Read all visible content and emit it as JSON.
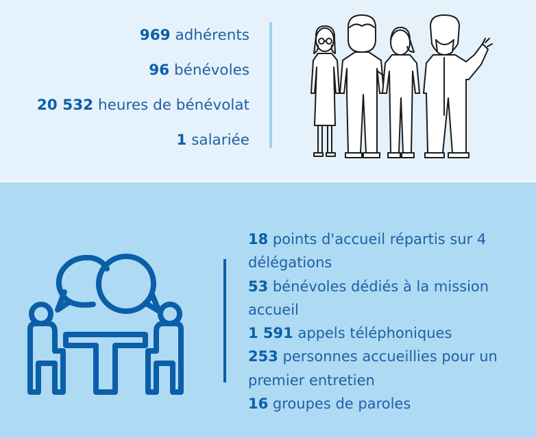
{
  "volunteers": {
    "items": [
      {
        "number": "969",
        "text": "adhérents"
      },
      {
        "number": "96",
        "text": "bénévoles"
      },
      {
        "number": "20 532",
        "text": "heures de bénévolat"
      },
      {
        "number": "1",
        "text": "salariée"
      }
    ],
    "illustration_icon": "people-group-icon"
  },
  "reception": {
    "items": [
      {
        "number": "18",
        "text": "points d'accueil répartis sur 4 délégations"
      },
      {
        "number": "53",
        "text": "bénévoles dédiés à la mission accueil"
      },
      {
        "number": "1 591",
        "text": "appels téléphoniques"
      },
      {
        "number": "253",
        "text": "personnes accueillies pour un premier entretien"
      },
      {
        "number": "16",
        "text": "groupes de paroles"
      }
    ],
    "illustration_icon": "meeting-conversation-icon"
  },
  "colors": {
    "top_background": "#e6f2fb",
    "bottom_background": "#aedbf3",
    "accent_blue": "#0a5fa8",
    "light_divider": "#9fd2f0"
  }
}
